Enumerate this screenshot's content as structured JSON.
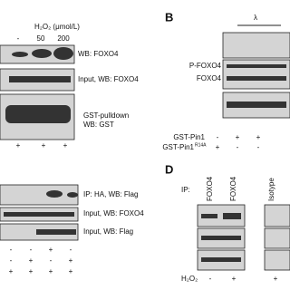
{
  "panel_a": {
    "treatment_label": "H₂O₂ (μmol/L)",
    "doses": [
      "-",
      "50",
      "200"
    ],
    "blot_labels": [
      "WB: FOXO4",
      "Input,  WB: FOXO4",
      "GST-pulldown",
      "WB: GST"
    ],
    "signs": [
      "+",
      "+",
      "+"
    ]
  },
  "panel_b": {
    "letter": "B",
    "lambda": "λ",
    "band_labels": [
      "P-FOXO4",
      "FOXO4"
    ],
    "rows": [
      {
        "label": "GST-Pin1",
        "signs": [
          "-",
          "+",
          "+"
        ]
      },
      {
        "label": "GST-Pin1",
        "superscript": "R14A",
        "signs": [
          "+",
          "-",
          "-"
        ]
      }
    ]
  },
  "panel_c": {
    "blot_labels": [
      "IP: HA,  WB: Flag",
      "Input,  WB: FOXO4",
      "Input,  WB: Flag"
    ],
    "sign_rows": [
      [
        "-",
        "-",
        "+",
        "-"
      ],
      [
        "-",
        "+",
        "-",
        "+"
      ],
      [
        "+",
        "+",
        "+",
        "+"
      ]
    ]
  },
  "panel_d": {
    "letter": "D",
    "ip_label": "IP:",
    "lane_labels": [
      "FOXO4",
      "FOXO4",
      "Isotype"
    ],
    "treatment_label": "H₂O₂",
    "signs": [
      "-",
      "+",
      "+"
    ]
  }
}
